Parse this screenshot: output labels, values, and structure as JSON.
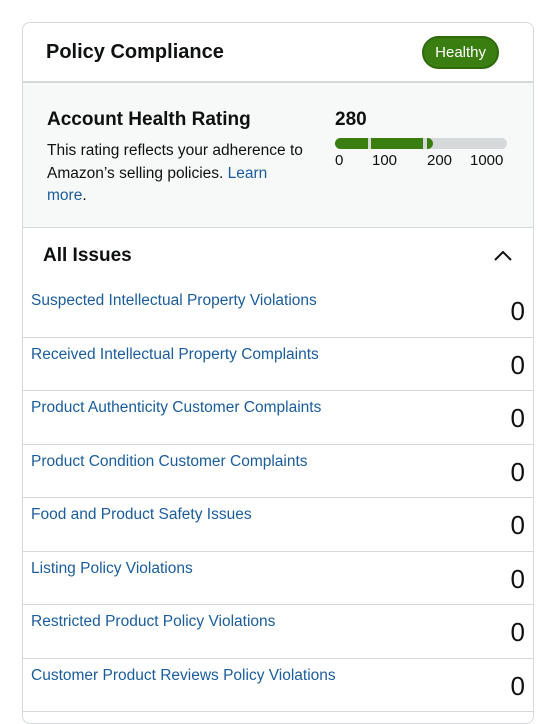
{
  "header": {
    "title": "Policy Compliance",
    "status_badge": "Healthy"
  },
  "health": {
    "title": "Account Health Rating",
    "description": "This rating reflects your adherence to Amazon’s selling policies.",
    "learn_more": "Learn more",
    "score": "280",
    "scale_ticks": [
      "0",
      "100",
      "200",
      "1000"
    ],
    "bar_color": "#3a7e12"
  },
  "issues": {
    "title": "All Issues",
    "items": [
      {
        "label": "Suspected Intellectual Property Violations",
        "count": "0"
      },
      {
        "label": "Received Intellectual Property Complaints",
        "count": "0"
      },
      {
        "label": "Product Authenticity Customer Complaints",
        "count": "0"
      },
      {
        "label": "Product Condition Customer Complaints",
        "count": "0"
      },
      {
        "label": "Food and Product Safety Issues",
        "count": "0"
      },
      {
        "label": "Listing Policy Violations",
        "count": "0"
      },
      {
        "label": "Restricted Product Policy Violations",
        "count": "0"
      },
      {
        "label": "Customer Product Reviews Policy Violations",
        "count": "0"
      }
    ]
  }
}
